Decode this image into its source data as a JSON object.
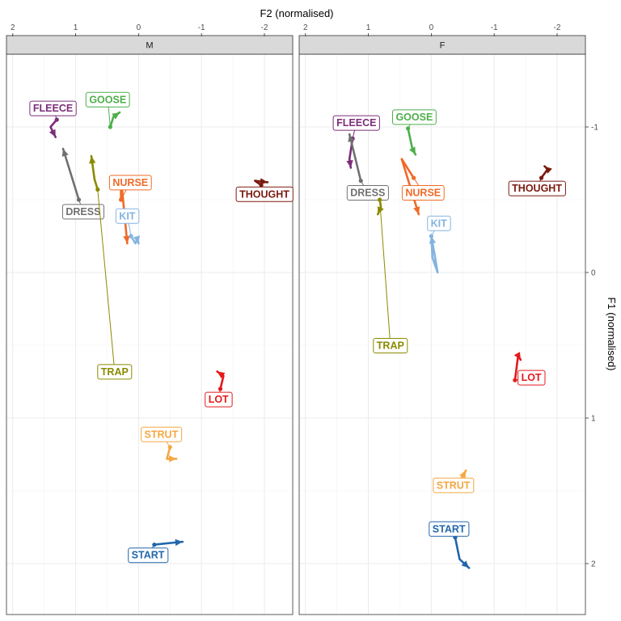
{
  "chart_data": {
    "type": "line",
    "title": "",
    "xlabel": "F2 (normalised)",
    "ylabel": "F1 (normalised)",
    "x_reversed": true,
    "y_reversed": true,
    "xlim": [
      -2.45,
      2.1
    ],
    "ylim": [
      -1.5,
      2.35
    ],
    "x_ticks": [
      2,
      1,
      0,
      -1,
      -2
    ],
    "x_tick_labels": [
      "2",
      "1",
      "0",
      "-1",
      "-2"
    ],
    "y_ticks": [
      -1,
      0,
      1,
      2
    ],
    "y_tick_labels": [
      "-1",
      "0",
      "1",
      "2"
    ],
    "grid": true,
    "facets": [
      {
        "name": "M",
        "series": [
          {
            "name": "FLEECE",
            "color": "#7B2D7A",
            "points": [
              [
                1.3,
                -1.05
              ],
              [
                1.4,
                -1.0
              ],
              [
                1.32,
                -0.93
              ]
            ],
            "label": [
              1.36,
              -1.13
            ]
          },
          {
            "name": "GOOSE",
            "color": "#4DAF4A",
            "points": [
              [
                0.45,
                -1.0
              ],
              [
                0.4,
                -1.07
              ],
              [
                0.3,
                -1.1
              ]
            ],
            "label": [
              0.49,
              -1.19
            ]
          },
          {
            "name": "DRESS",
            "color": "#707070",
            "points": [
              [
                0.95,
                -0.5
              ],
              [
                1.2,
                -0.85
              ]
            ],
            "label": [
              0.88,
              -0.42
            ]
          },
          {
            "name": "NURSE",
            "color": "#F06A28",
            "points": [
              [
                0.28,
                -0.5
              ],
              [
                0.28,
                -0.65
              ],
              [
                0.18,
                -0.2
              ]
            ],
            "label": [
              0.13,
              -0.62
            ]
          },
          {
            "name": "KIT",
            "color": "#84B4E0",
            "points": [
              [
                0.12,
                -0.25
              ],
              [
                0.05,
                -0.2
              ],
              [
                0.02,
                -0.23
              ],
              [
                0.0,
                -0.2
              ]
            ],
            "label": [
              0.18,
              -0.39
            ]
          },
          {
            "name": "THOUGHT",
            "color": "#7A1A10",
            "points": [
              [
                -1.95,
                -0.6
              ],
              [
                -1.85,
                -0.63
              ],
              [
                -2.05,
                -0.62
              ]
            ],
            "label": [
              -2.0,
              -0.54
            ]
          },
          {
            "name": "TRAP",
            "color": "#8A8A00",
            "points": [
              [
                0.65,
                -0.57
              ],
              [
                0.7,
                -0.64
              ],
              [
                0.75,
                -0.8
              ]
            ],
            "label": [
              0.38,
              0.68
            ]
          },
          {
            "name": "LOT",
            "color": "#E41A1C",
            "points": [
              [
                -1.3,
                0.8
              ],
              [
                -1.35,
                0.71
              ],
              [
                -1.25,
                0.68
              ]
            ],
            "label": [
              -1.27,
              0.87
            ]
          },
          {
            "name": "STRUT",
            "color": "#F5A742",
            "points": [
              [
                -0.5,
                1.2
              ],
              [
                -0.45,
                1.28
              ],
              [
                -0.6,
                1.28
              ]
            ],
            "label": [
              -0.36,
              1.11
            ]
          },
          {
            "name": "START",
            "color": "#2166AC",
            "points": [
              [
                -0.25,
                1.87
              ],
              [
                -0.7,
                1.85
              ]
            ],
            "label": [
              -0.15,
              1.94
            ]
          }
        ]
      },
      {
        "name": "F",
        "series": [
          {
            "name": "FLEECE",
            "color": "#7B2D7A",
            "points": [
              [
                1.25,
                -0.92
              ],
              [
                1.3,
                -0.78
              ],
              [
                1.28,
                -0.72
              ]
            ],
            "label": [
              1.19,
              -1.03
            ]
          },
          {
            "name": "GOOSE",
            "color": "#4DAF4A",
            "points": [
              [
                0.37,
                -0.99
              ],
              [
                0.3,
                -0.85
              ],
              [
                0.25,
                -0.81
              ]
            ],
            "label": [
              0.27,
              -1.07
            ]
          },
          {
            "name": "DRESS",
            "color": "#707070",
            "points": [
              [
                1.12,
                -0.63
              ],
              [
                1.3,
                -0.95
              ]
            ],
            "label": [
              1.01,
              -0.55
            ]
          },
          {
            "name": "NURSE",
            "color": "#F06A28",
            "points": [
              [
                0.28,
                -0.65
              ],
              [
                0.47,
                -0.78
              ],
              [
                0.2,
                -0.4
              ]
            ],
            "label": [
              0.13,
              -0.55
            ]
          },
          {
            "name": "KIT",
            "color": "#84B4E0",
            "points": [
              [
                0.0,
                -0.25
              ],
              [
                -0.02,
                -0.1
              ],
              [
                -0.1,
                0.0
              ],
              [
                -0.05,
                -0.13
              ],
              [
                0.0,
                -0.25
              ]
            ],
            "label": [
              -0.12,
              -0.34
            ]
          },
          {
            "name": "THOUGHT",
            "color": "#7A1A10",
            "points": [
              [
                -1.75,
                -0.65
              ],
              [
                -1.85,
                -0.71
              ],
              [
                -1.8,
                -0.73
              ]
            ],
            "label": [
              -1.68,
              -0.58
            ]
          },
          {
            "name": "TRAP",
            "color": "#8A8A00",
            "points": [
              [
                0.82,
                -0.5
              ],
              [
                0.8,
                -0.45
              ],
              [
                0.85,
                -0.4
              ]
            ],
            "label": [
              0.65,
              0.5
            ]
          },
          {
            "name": "LOT",
            "color": "#E41A1C",
            "points": [
              [
                -1.33,
                0.74
              ],
              [
                -1.38,
                0.57
              ],
              [
                -1.42,
                0.6
              ]
            ],
            "label": [
              -1.59,
              0.72
            ]
          },
          {
            "name": "STRUT",
            "color": "#F5A742",
            "points": [
              [
                -0.45,
                1.43
              ],
              [
                -0.5,
                1.4
              ],
              [
                -0.55,
                1.36
              ]
            ],
            "label": [
              -0.35,
              1.46
            ]
          },
          {
            "name": "START",
            "color": "#2166AC",
            "points": [
              [
                -0.38,
                1.82
              ],
              [
                -0.45,
                1.97
              ],
              [
                -0.6,
                2.03
              ]
            ],
            "label": [
              -0.28,
              1.76
            ]
          }
        ]
      }
    ]
  }
}
